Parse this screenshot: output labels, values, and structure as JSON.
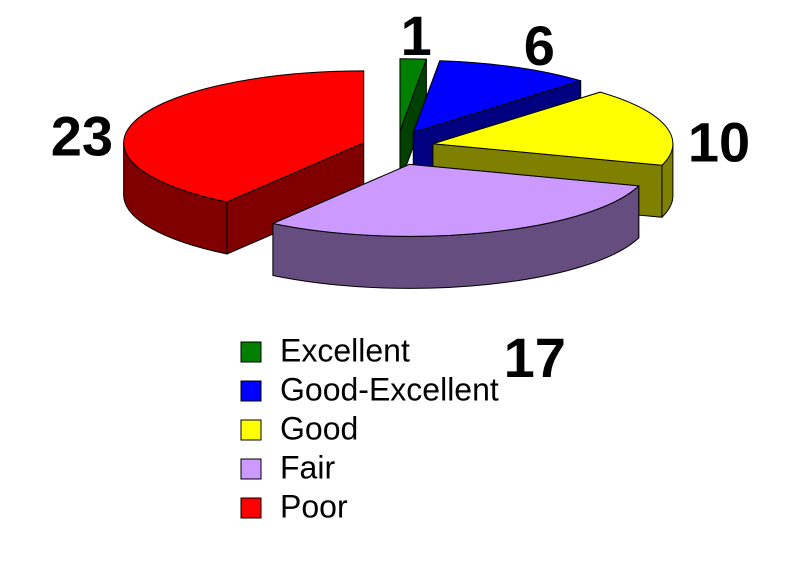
{
  "chart_data": {
    "type": "pie3d",
    "categories": [
      "Excellent",
      "Good-Excellent",
      "Good",
      "Fair",
      "Poor"
    ],
    "values": [
      1,
      6,
      10,
      17,
      23
    ],
    "colors": [
      "#008000",
      "#0000ff",
      "#ffff00",
      "#cc99ff",
      "#ff0000"
    ],
    "legend": "bottom"
  }
}
